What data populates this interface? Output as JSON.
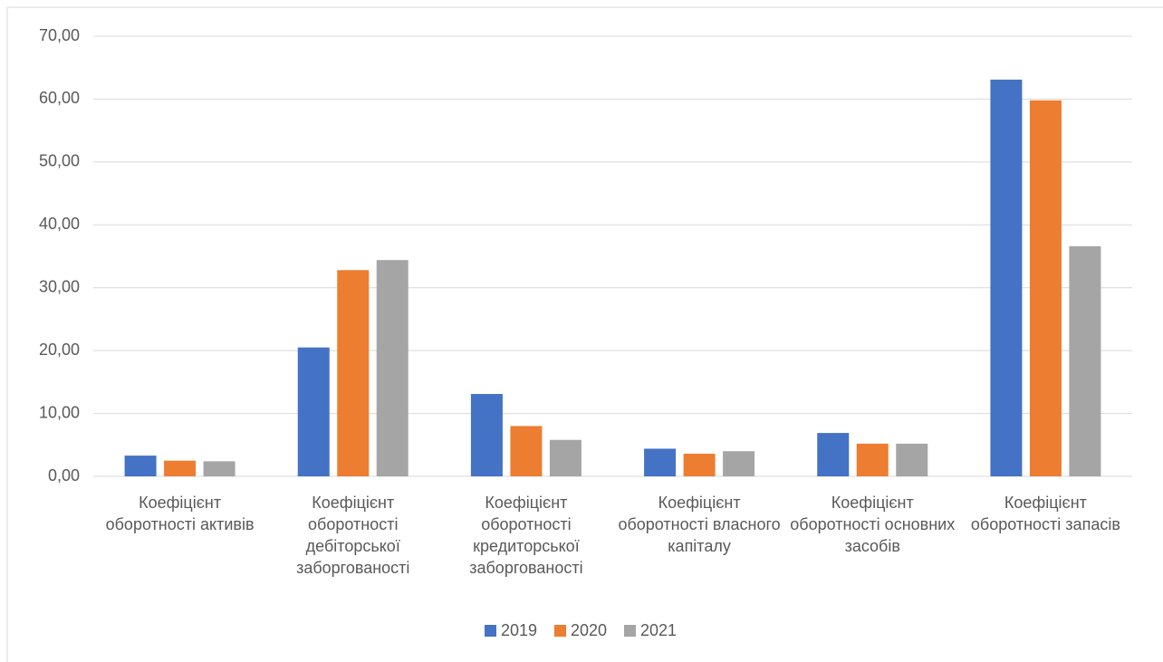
{
  "chart_data": {
    "type": "bar",
    "categories": [
      "Коефіцієнт оборотності активів",
      "Коефіцієнт оборотності дебіторської заборгованості",
      "Коефіцієнт оборотності кредиторської заборгованості",
      "Коефіцієнт оборотності власного капіталу",
      "Коефіцієнт оборотності основних засобів",
      "Коефіцієнт оборотності запасів"
    ],
    "series": [
      {
        "name": "2019",
        "color": "#4472c4",
        "values": [
          3.3,
          20.5,
          13.1,
          4.4,
          6.9,
          63.1
        ]
      },
      {
        "name": "2020",
        "color": "#ed7d31",
        "values": [
          2.5,
          32.8,
          8.0,
          3.6,
          5.2,
          59.8
        ]
      },
      {
        "name": "2021",
        "color": "#a5a5a5",
        "values": [
          2.4,
          34.4,
          5.8,
          4.0,
          5.2,
          36.6
        ]
      }
    ],
    "ylim": [
      0,
      70
    ],
    "yticks": [
      {
        "value": 0,
        "label": "0,00"
      },
      {
        "value": 10,
        "label": "10,00"
      },
      {
        "value": 20,
        "label": "20,00"
      },
      {
        "value": 30,
        "label": "30,00"
      },
      {
        "value": 40,
        "label": "40,00"
      },
      {
        "value": 50,
        "label": "50,00"
      },
      {
        "value": 60,
        "label": "60,00"
      },
      {
        "value": 70,
        "label": "70,00"
      }
    ],
    "grid": true,
    "legend": "bottom"
  }
}
